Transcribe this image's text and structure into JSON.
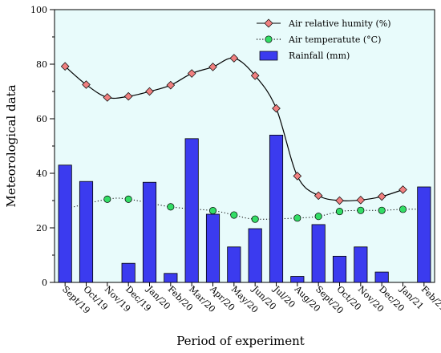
{
  "chart_data": {
    "type": "bar",
    "categories": [
      "Sept/19",
      "Oct/19",
      "Nov/19",
      "Dec/19",
      "Jan/20",
      "Feb/20",
      "Mar/20",
      "Apr/20",
      "May/20",
      "Jun/20",
      "Jul/20",
      "Aug/20",
      "Sept/20",
      "Oct/20",
      "Nov/20",
      "Dec/20",
      "Jan/21",
      "Feb/21"
    ],
    "series": [
      {
        "name": "Air relative humity (%)",
        "kind": "line",
        "marker": "diamond",
        "color": "#f08080",
        "values": [
          79.2,
          72.5,
          67.8,
          68.2,
          70.0,
          72.3,
          76.6,
          79.0,
          82.2,
          75.8,
          63.8,
          39.0,
          31.8,
          30.0,
          30.2,
          31.5,
          34.0,
          null
        ]
      },
      {
        "name": "Air temperatute (°C)",
        "kind": "dotted-line",
        "marker": "circle",
        "color": "#33dd66",
        "values": [
          null,
          null,
          30.5,
          30.5,
          null,
          27.7,
          null,
          26.3,
          24.7,
          23.2,
          null,
          23.6,
          24.2,
          26.0,
          26.4,
          26.4,
          26.8,
          null
        ]
      },
      {
        "name": "Rainfall (mm)",
        "kind": "bar",
        "color": "#3b3bef",
        "values": [
          43.0,
          37.0,
          null,
          7.0,
          36.7,
          3.3,
          52.7,
          25.0,
          13.0,
          19.7,
          54.0,
          2.2,
          21.2,
          9.6,
          13.0,
          3.8,
          null,
          35.0
        ]
      }
    ],
    "xlabel": "Period of experiment",
    "ylabel": "Meteorological data",
    "ylim": [
      0,
      100
    ],
    "yticks": [
      0,
      20,
      40,
      60,
      80,
      100
    ],
    "grid": false,
    "legend_position": "top-right",
    "background_color": "#e8fbfb"
  }
}
